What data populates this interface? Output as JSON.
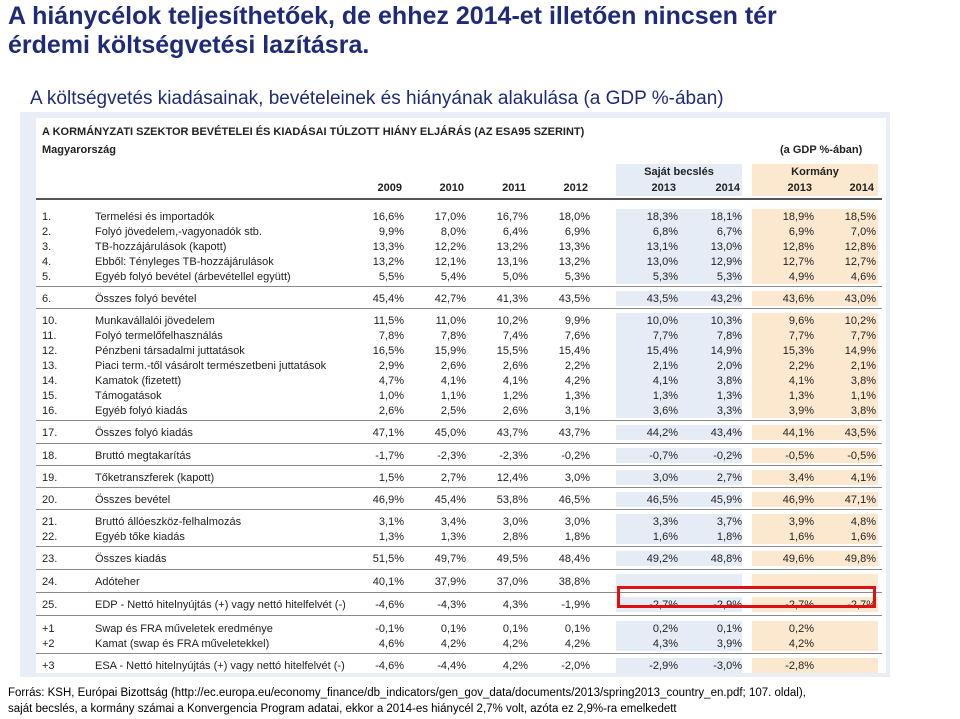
{
  "slide": {
    "title_line1": "A hiánycélok teljesíthetőek, de ehhez 2014-et illetően nincsen tér",
    "title_line2": "érdemi költségvetési lazításra.",
    "subtitle": "A költségvetés kiadásainak, bevételeinek és hiányának alakulása",
    "subtitle_unit": "(a GDP %-ában)",
    "footer_line1": "Forrás: KSH, Európai Bizottság (http://ec.europa.eu/economy_finance/db_indicators/gen_gov_data/documents/2013/spring2013_country_en.pdf; 107. oldal),",
    "footer_line2": "saját becslés, a kormány számai a Konvergencia Program adatai, ekkor a 2014-es hiánycél 2,7% volt, azóta ez 2,9%-ra emelkedett"
  },
  "table": {
    "title": "A KORMÁNYZATI SZEKTOR BEVÉTELEI ÉS KIADÁSAI TÚLZOTT HIÁNY ELJÁRÁS (AZ ESA95 SZERINT)",
    "country": "Magyarország",
    "unit": "(a GDP %-ában)",
    "group_sajat": "Saját becslés",
    "group_korm": "Kormány",
    "years": [
      "2009",
      "2010",
      "2011",
      "2012",
      "2013",
      "2014",
      "2013",
      "2014"
    ],
    "rows": [
      {
        "num": "1.",
        "label": "Termelési és importadók",
        "vals": [
          "16,6%",
          "17,0%",
          "16,7%",
          "18,0%",
          "18,3%",
          "18,1%",
          "18,9%",
          "18,5%"
        ]
      },
      {
        "num": "2.",
        "label": "Folyó jövedelem,-vagyonadók stb.",
        "vals": [
          "9,9%",
          "8,0%",
          "6,4%",
          "6,9%",
          "6,8%",
          "6,7%",
          "6,9%",
          "7,0%"
        ]
      },
      {
        "num": "3.",
        "label": "TB-hozzájárulások (kapott)",
        "vals": [
          "13,3%",
          "12,2%",
          "13,2%",
          "13,3%",
          "13,1%",
          "13,0%",
          "12,8%",
          "12,8%"
        ]
      },
      {
        "num": "4.",
        "label": "Ebből: Tényleges TB-hozzájárulások",
        "vals": [
          "13,2%",
          "12,1%",
          "13,1%",
          "13,2%",
          "13,0%",
          "12,9%",
          "12,7%",
          "12,7%"
        ]
      },
      {
        "num": "5.",
        "label": "Egyéb folyó bevétel (árbevétellel együtt)",
        "vals": [
          "5,5%",
          "5,4%",
          "5,0%",
          "5,3%",
          "5,3%",
          "5,3%",
          "4,9%",
          "4,6%"
        ]
      },
      {
        "num": "6.",
        "label": "Összes folyó bevétel",
        "vals": [
          "45,4%",
          "42,7%",
          "41,3%",
          "43,5%",
          "43,5%",
          "43,2%",
          "43,6%",
          "43,0%"
        ]
      },
      {
        "num": "10.",
        "label": "Munkavállalói jövedelem",
        "vals": [
          "11,5%",
          "11,0%",
          "10,2%",
          "9,9%",
          "10,0%",
          "10,3%",
          "9,6%",
          "10,2%"
        ]
      },
      {
        "num": "11.",
        "label": "Folyó termelőfelhasználás",
        "vals": [
          "7,8%",
          "7,8%",
          "7,4%",
          "7,6%",
          "7,7%",
          "7,8%",
          "7,7%",
          "7,7%"
        ]
      },
      {
        "num": "12.",
        "label": "Pénzbeni társadalmi juttatások",
        "vals": [
          "16,5%",
          "15,9%",
          "15,5%",
          "15,4%",
          "15,4%",
          "14,9%",
          "15,3%",
          "14,9%"
        ]
      },
      {
        "num": "13.",
        "label": "Piaci term.-től vásárolt természetbeni juttatások",
        "vals": [
          "2,9%",
          "2,6%",
          "2,6%",
          "2,2%",
          "2,1%",
          "2,0%",
          "2,2%",
          "2,1%"
        ]
      },
      {
        "num": "14.",
        "label": "Kamatok (fizetett)",
        "vals": [
          "4,7%",
          "4,1%",
          "4,1%",
          "4,2%",
          "4,1%",
          "3,8%",
          "4,1%",
          "3,8%"
        ]
      },
      {
        "num": "15.",
        "label": "Támogatások",
        "vals": [
          "1,0%",
          "1,1%",
          "1,2%",
          "1,3%",
          "1,3%",
          "1,3%",
          "1,3%",
          "1,1%"
        ]
      },
      {
        "num": "16.",
        "label": "Egyéb folyó kiadás",
        "vals": [
          "2,6%",
          "2,5%",
          "2,6%",
          "3,1%",
          "3,6%",
          "3,3%",
          "3,9%",
          "3,8%"
        ]
      },
      {
        "num": "17.",
        "label": "Összes folyó kiadás",
        "vals": [
          "47,1%",
          "45,0%",
          "43,7%",
          "43,7%",
          "44,2%",
          "43,4%",
          "44,1%",
          "43,5%"
        ]
      },
      {
        "num": "18.",
        "label": "Bruttó megtakarítás",
        "vals": [
          "-1,7%",
          "-2,3%",
          "-2,3%",
          "-0,2%",
          "-0,7%",
          "-0,2%",
          "-0,5%",
          "-0,5%"
        ]
      },
      {
        "num": "19.",
        "label": "Tőketranszferek (kapott)",
        "vals": [
          "1,5%",
          "2,7%",
          "12,4%",
          "3,0%",
          "3,0%",
          "2,7%",
          "3,4%",
          "4,1%"
        ]
      },
      {
        "num": "20.",
        "label": "Összes bevétel",
        "vals": [
          "46,9%",
          "45,4%",
          "53,8%",
          "46,5%",
          "46,5%",
          "45,9%",
          "46,9%",
          "47,1%"
        ]
      },
      {
        "num": "21.",
        "label": "Bruttó állóeszköz-felhalmozás",
        "vals": [
          "3,1%",
          "3,4%",
          "3,0%",
          "3,0%",
          "3,3%",
          "3,7%",
          "3,9%",
          "4,8%"
        ]
      },
      {
        "num": "22.",
        "label": "Egyéb tőke kiadás",
        "vals": [
          "1,3%",
          "1,3%",
          "2,8%",
          "1,8%",
          "1,6%",
          "1,8%",
          "1,6%",
          "1,6%"
        ]
      },
      {
        "num": "23.",
        "label": "Összes kiadás",
        "vals": [
          "51,5%",
          "49,7%",
          "49,5%",
          "48,4%",
          "49,2%",
          "48,8%",
          "49,6%",
          "49,8%"
        ]
      },
      {
        "num": "24.",
        "label": "Adóteher",
        "vals": [
          "40,1%",
          "37,9%",
          "37,0%",
          "38,8%",
          "",
          "",
          "",
          ""
        ]
      },
      {
        "num": "25.",
        "label": "EDP - Nettó hitelnyújtás (+) vagy nettó hitelfelvét (-)",
        "vals": [
          "-4,6%",
          "-4,3%",
          "4,3%",
          "-1,9%",
          "-2,7%",
          "-2,9%",
          "-2,7%",
          "-2,7%"
        ]
      },
      {
        "num": "+1",
        "label": "Swap és FRA műveletek eredménye",
        "vals": [
          "-0,1%",
          "0,1%",
          "0,1%",
          "0,1%",
          "0,2%",
          "0,1%",
          "0,2%",
          ""
        ]
      },
      {
        "num": "+2",
        "label": "Kamat (swap és FRA műveletekkel)",
        "vals": [
          "4,6%",
          "4,2%",
          "4,2%",
          "4,2%",
          "4,3%",
          "3,9%",
          "4,2%",
          ""
        ]
      },
      {
        "num": "+3",
        "label": "ESA - Nettó hitelnyújtás (+) vagy nettó hitelfelvét (-)",
        "vals": [
          "-4,6%",
          "-4,4%",
          "4,2%",
          "-2,0%",
          "-2,9%",
          "-3,0%",
          "-2,8%",
          ""
        ]
      }
    ]
  }
}
